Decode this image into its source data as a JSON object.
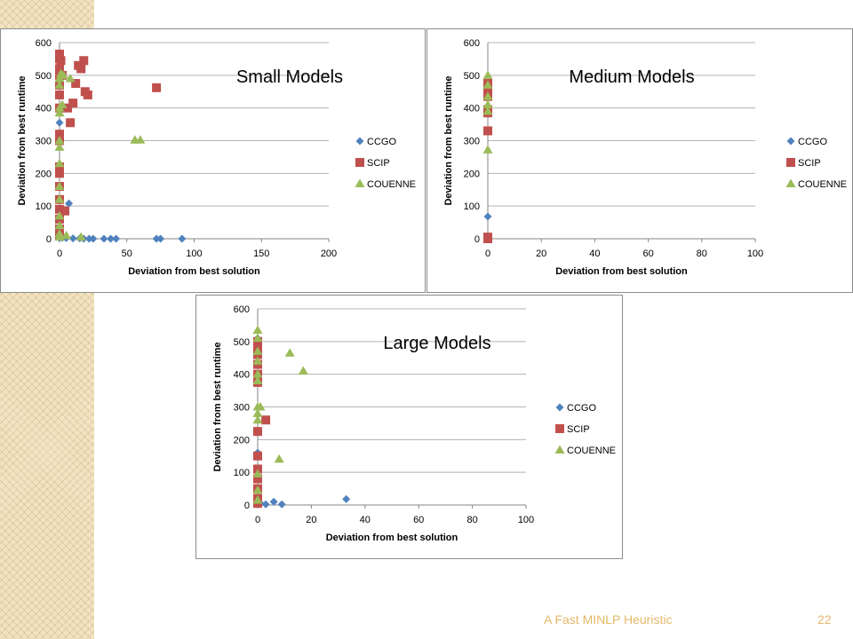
{
  "footer": {
    "title": "A Fast MINLP Heuristic",
    "page": "22"
  },
  "colors": {
    "CCGO": "#4f81bd",
    "SCIP": "#c0504d",
    "COUENNE": "#9bbb59"
  },
  "chart_data": [
    {
      "type": "scatter",
      "title": "Small Models",
      "xlabel": "Deviation from best solution",
      "ylabel": "Deviation from best runtime",
      "xlim": [
        0,
        200
      ],
      "ylim": [
        0,
        600
      ],
      "xticks": [
        "0",
        "50",
        "100",
        "150",
        "200"
      ],
      "yticks": [
        "0",
        "100",
        "200",
        "300",
        "400",
        "500",
        "600"
      ],
      "grid": "horizontal",
      "legend": "right",
      "series": [
        {
          "name": "CCGO",
          "marker": "diamond",
          "points": [
            [
              0,
              355
            ],
            [
              0,
              10
            ],
            [
              0,
              2
            ],
            [
              7,
              108
            ],
            [
              2,
              3
            ],
            [
              5,
              2
            ],
            [
              10,
              1
            ],
            [
              15,
              1
            ],
            [
              18,
              0
            ],
            [
              22,
              0
            ],
            [
              25,
              0
            ],
            [
              33,
              0
            ],
            [
              38,
              0
            ],
            [
              42,
              0
            ],
            [
              72,
              0
            ],
            [
              75,
              0
            ],
            [
              91,
              0
            ]
          ]
        },
        {
          "name": "SCIP",
          "marker": "square",
          "points": [
            [
              0,
              565
            ],
            [
              0,
              550
            ],
            [
              0,
              520
            ],
            [
              0,
              500
            ],
            [
              0,
              470
            ],
            [
              0,
              440
            ],
            [
              0,
              400
            ],
            [
              0,
              320
            ],
            [
              0,
              300
            ],
            [
              0,
              220
            ],
            [
              0,
              200
            ],
            [
              0,
              160
            ],
            [
              0,
              120
            ],
            [
              0,
              90
            ],
            [
              0,
              60
            ],
            [
              0,
              30
            ],
            [
              0,
              10
            ],
            [
              1,
              545
            ],
            [
              2,
              500
            ],
            [
              4,
              85
            ],
            [
              6,
              400
            ],
            [
              8,
              355
            ],
            [
              10,
              415
            ],
            [
              12,
              475
            ],
            [
              14,
              530
            ],
            [
              16,
              520
            ],
            [
              18,
              545
            ],
            [
              19,
              450
            ],
            [
              21,
              440
            ],
            [
              72,
              462
            ]
          ]
        },
        {
          "name": "COUENNE",
          "marker": "triangle",
          "points": [
            [
              0,
              490
            ],
            [
              0,
              470
            ],
            [
              0,
              400
            ],
            [
              0,
              385
            ],
            [
              0,
              300
            ],
            [
              0,
              280
            ],
            [
              0,
              230
            ],
            [
              0,
              160
            ],
            [
              0,
              120
            ],
            [
              0,
              70
            ],
            [
              0,
              40
            ],
            [
              0,
              15
            ],
            [
              0,
              5
            ],
            [
              1,
              505
            ],
            [
              2,
              410
            ],
            [
              3,
              500
            ],
            [
              5,
              10
            ],
            [
              8,
              490
            ],
            [
              16,
              5
            ],
            [
              56,
              302
            ],
            [
              60,
              302
            ]
          ]
        }
      ]
    },
    {
      "type": "scatter",
      "title": "Medium Models",
      "xlabel": "Deviation from best solution",
      "ylabel": "Deviation from best runtime",
      "xlim": [
        0,
        100
      ],
      "ylim": [
        0,
        600
      ],
      "xticks": [
        "0",
        "20",
        "40",
        "60",
        "80",
        "100"
      ],
      "yticks": [
        "0",
        "100",
        "200",
        "300",
        "400",
        "500",
        "600"
      ],
      "grid": "horizontal",
      "legend": "right",
      "series": [
        {
          "name": "CCGO",
          "marker": "diamond",
          "points": [
            [
              0,
              68
            ],
            [
              0,
              8
            ],
            [
              0,
              2
            ]
          ]
        },
        {
          "name": "SCIP",
          "marker": "square",
          "points": [
            [
              0,
              475
            ],
            [
              0,
              460
            ],
            [
              0,
              450
            ],
            [
              0,
              435
            ],
            [
              0,
              395
            ],
            [
              0,
              385
            ],
            [
              0,
              330
            ],
            [
              0,
              5
            ],
            [
              0,
              0
            ]
          ]
        },
        {
          "name": "COUENNE",
          "marker": "triangle",
          "points": [
            [
              0,
              500
            ],
            [
              0,
              470
            ],
            [
              0,
              435
            ],
            [
              0,
              410
            ],
            [
              0,
              390
            ],
            [
              0,
              272
            ]
          ]
        }
      ]
    },
    {
      "type": "scatter",
      "title": "Large Models",
      "xlabel": "Deviation from best solution",
      "ylabel": "Deviation from best runtime",
      "xlim": [
        0,
        100
      ],
      "ylim": [
        0,
        600
      ],
      "xticks": [
        "0",
        "20",
        "40",
        "60",
        "80",
        "100"
      ],
      "yticks": [
        "0",
        "100",
        "200",
        "300",
        "400",
        "500",
        "600"
      ],
      "grid": "horizontal",
      "legend": "right",
      "series": [
        {
          "name": "CCGO",
          "marker": "diamond",
          "points": [
            [
              0,
              510
            ],
            [
              0,
              160
            ],
            [
              0,
              20
            ],
            [
              1,
              5
            ],
            [
              3,
              2
            ],
            [
              6,
              10
            ],
            [
              9,
              2
            ],
            [
              33,
              18
            ]
          ]
        },
        {
          "name": "SCIP",
          "marker": "square",
          "points": [
            [
              0,
              500
            ],
            [
              0,
              480
            ],
            [
              0,
              460
            ],
            [
              0,
              430
            ],
            [
              0,
              400
            ],
            [
              0,
              375
            ],
            [
              0,
              225
            ],
            [
              0,
              150
            ],
            [
              0,
              110
            ],
            [
              0,
              80
            ],
            [
              0,
              50
            ],
            [
              0,
              20
            ],
            [
              0,
              5
            ],
            [
              3,
              260
            ]
          ]
        },
        {
          "name": "COUENNE",
          "marker": "triangle",
          "points": [
            [
              0,
              535
            ],
            [
              0,
              510
            ],
            [
              0,
              470
            ],
            [
              0,
              440
            ],
            [
              0,
              400
            ],
            [
              0,
              380
            ],
            [
              0,
              300
            ],
            [
              0,
              280
            ],
            [
              0,
              260
            ],
            [
              0,
              95
            ],
            [
              0,
              45
            ],
            [
              0,
              15
            ],
            [
              1,
              300
            ],
            [
              8,
              140
            ],
            [
              12,
              465
            ],
            [
              17,
              410
            ]
          ]
        }
      ]
    }
  ]
}
